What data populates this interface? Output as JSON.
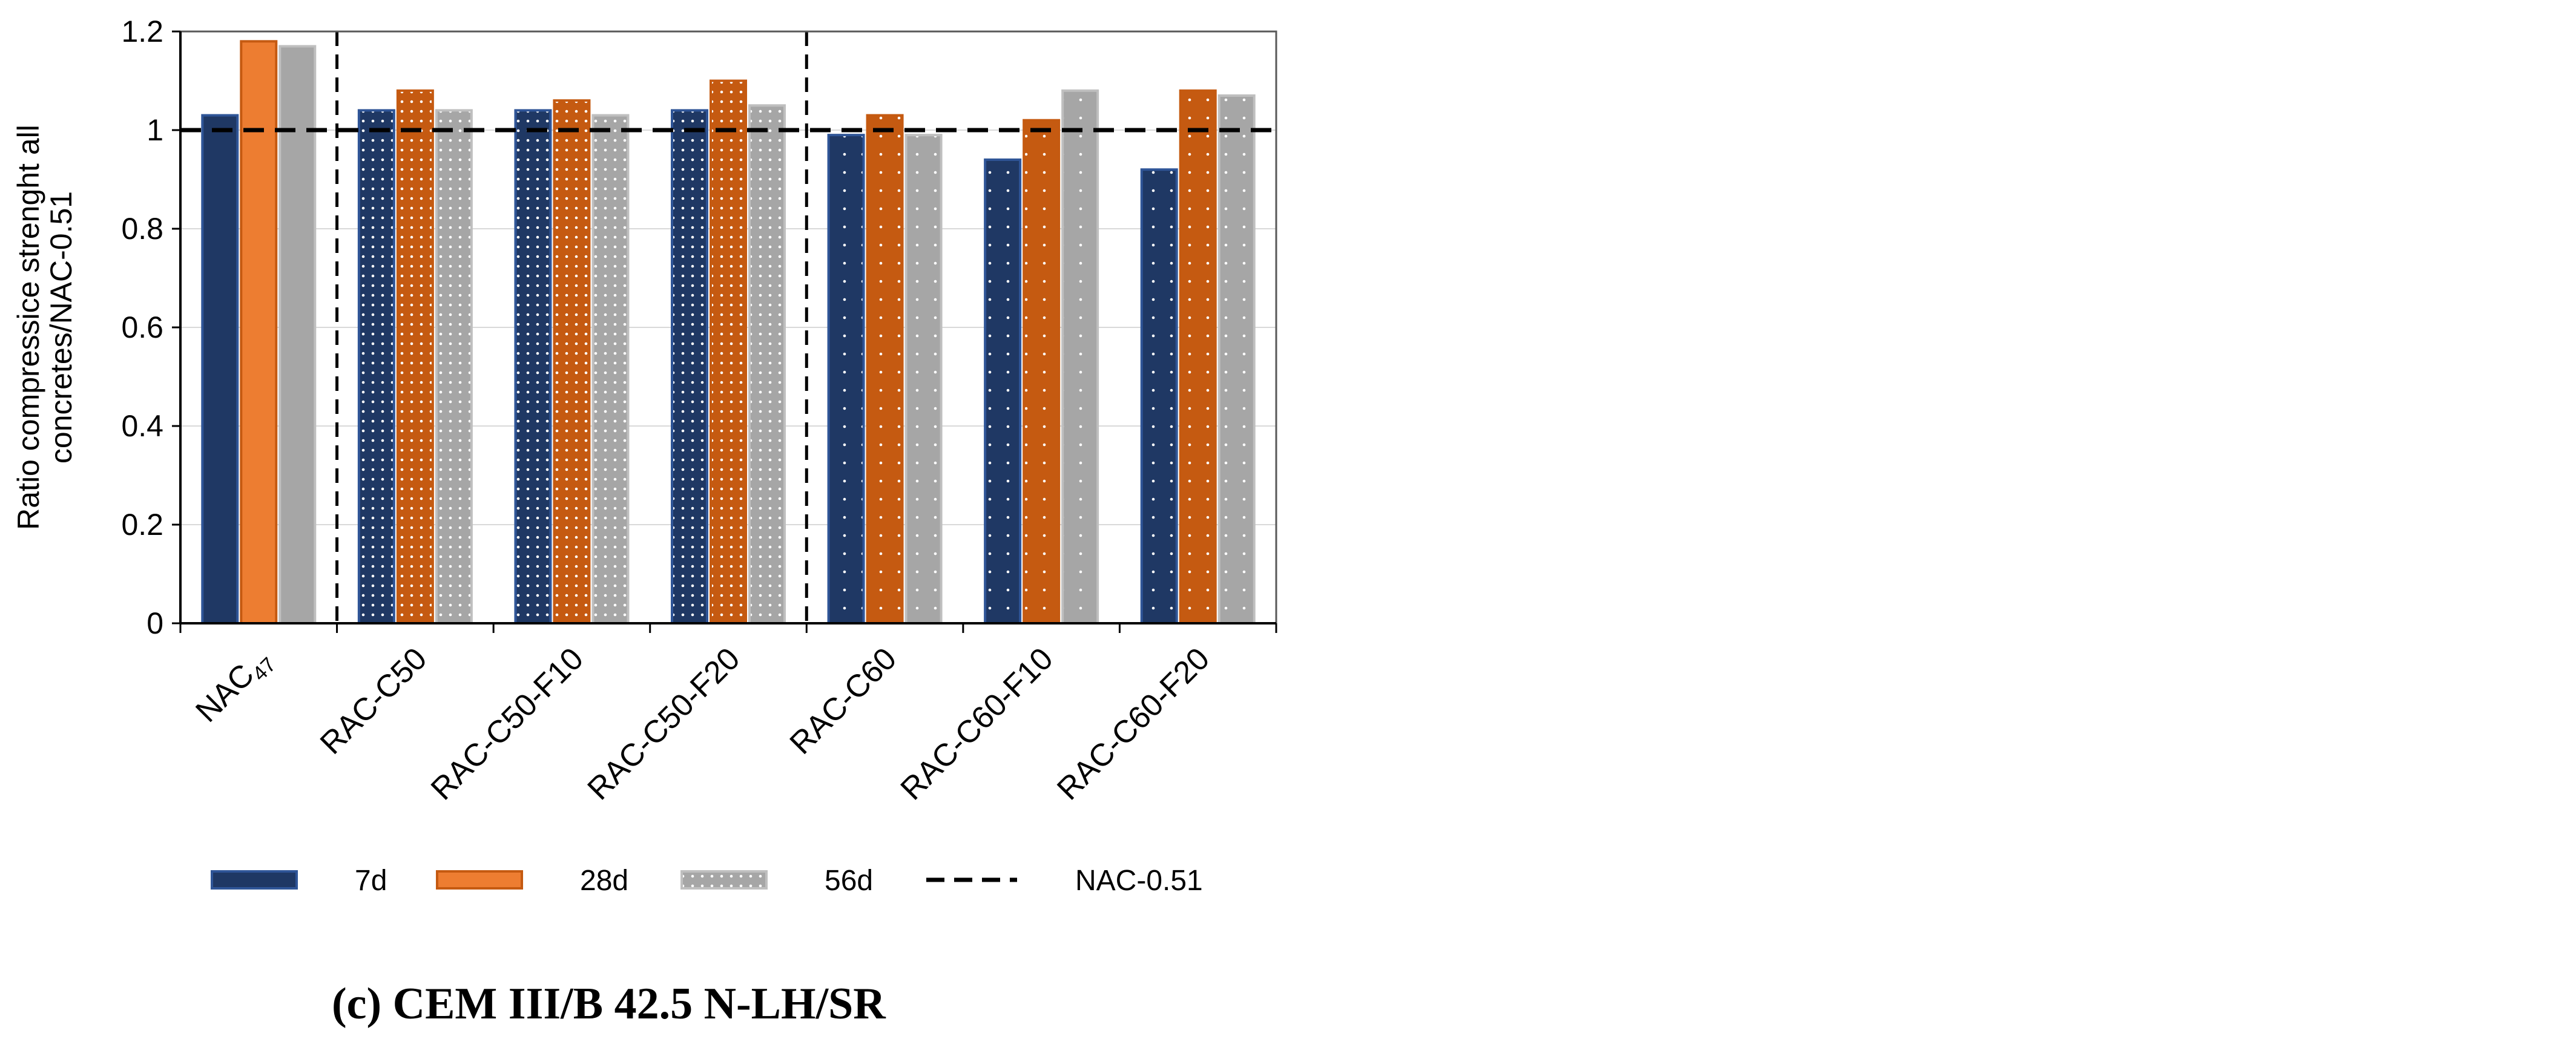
{
  "chart_data": {
    "type": "bar",
    "title": "",
    "caption": "(c) CEM III/B 42.5 N-LH/SR",
    "ylabel_line1": "Ratio compressice strenght all",
    "ylabel_line2": "concretes/NAC-0.51",
    "xlabel": "",
    "ylim": [
      0,
      1.2
    ],
    "yticks": [
      0,
      0.2,
      0.4,
      0.6,
      0.8,
      1,
      1.2
    ],
    "ytick_labels": [
      "0",
      "0.2",
      "0.4",
      "0.6",
      "0.8",
      "1",
      "1.2"
    ],
    "grid": "horizontal",
    "categories": [
      {
        "base": "NAC",
        "sub": "47"
      },
      {
        "base": "RAC-C50",
        "sub": ""
      },
      {
        "base": "RAC-C50-F10",
        "sub": ""
      },
      {
        "base": "RAC-C50-F20",
        "sub": ""
      },
      {
        "base": "RAC-C60",
        "sub": ""
      },
      {
        "base": "RAC-C60-F10",
        "sub": ""
      },
      {
        "base": "RAC-C60-F20",
        "sub": ""
      }
    ],
    "series": [
      {
        "name": "7d",
        "color": "#1f3864",
        "values": [
          1.03,
          1.04,
          1.04,
          1.04,
          0.99,
          0.94,
          0.92
        ]
      },
      {
        "name": "28d",
        "color": "#c55a11",
        "values": [
          1.18,
          1.08,
          1.06,
          1.1,
          1.03,
          1.02,
          1.08
        ]
      },
      {
        "name": "56d",
        "color": "#a6a6a6",
        "values": [
          1.17,
          1.04,
          1.03,
          1.05,
          0.99,
          1.08,
          1.07
        ]
      }
    ],
    "reference_line": {
      "name": "NAC-0.51",
      "value": 1
    },
    "group_dividers_after": [
      0,
      3
    ],
    "legend_position": "bottom"
  }
}
